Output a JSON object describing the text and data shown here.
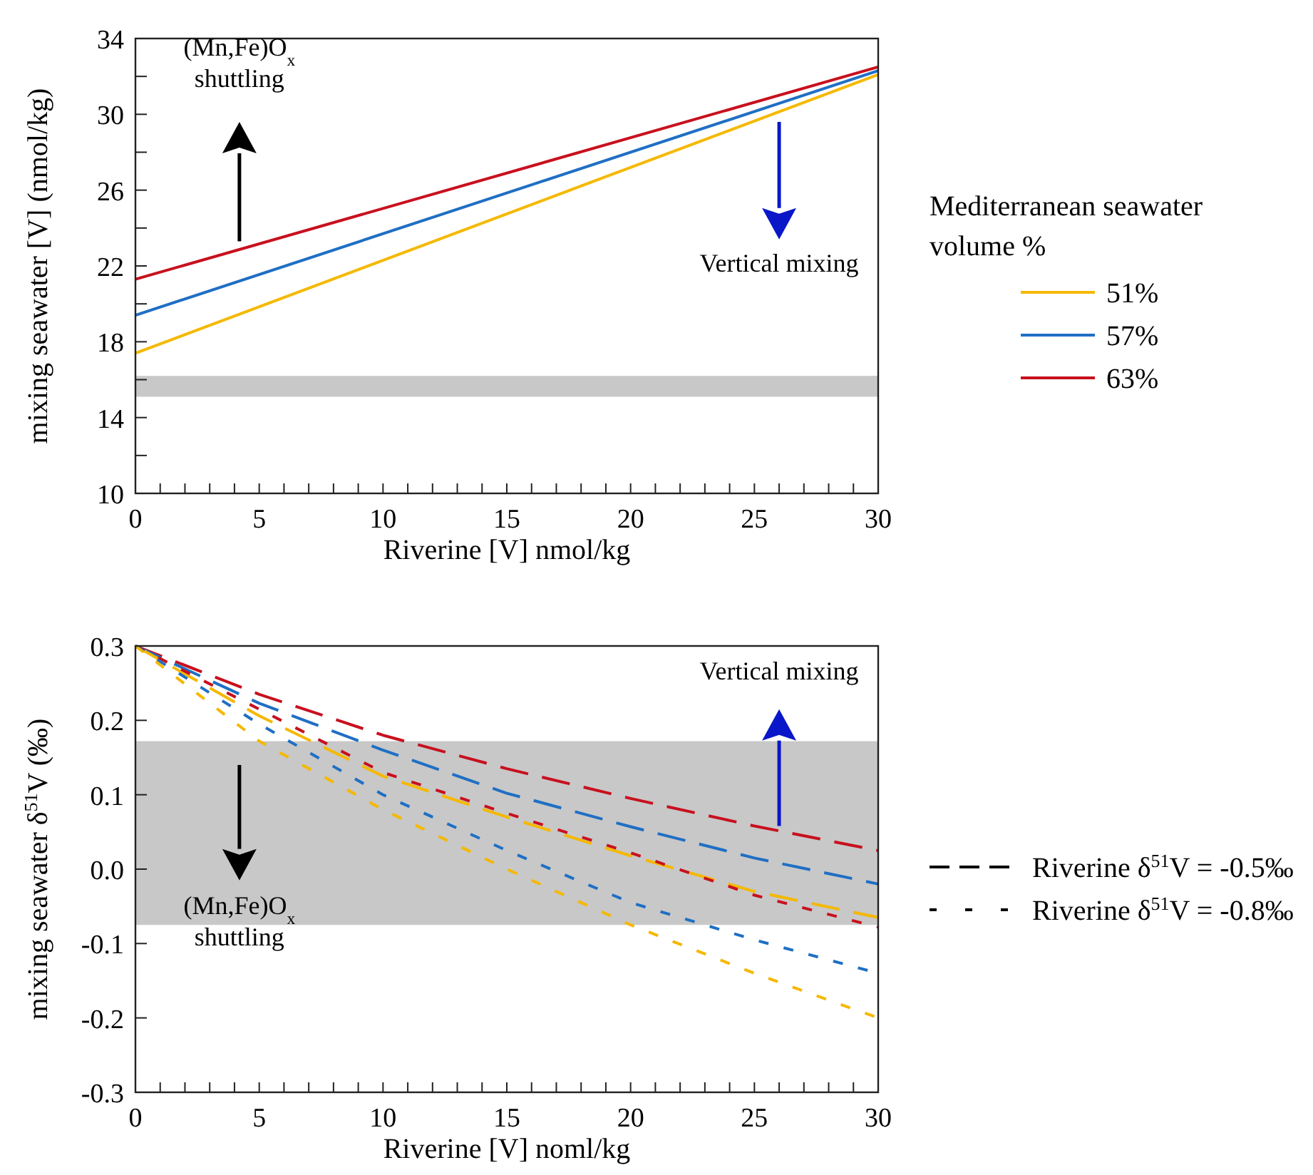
{
  "chart_data": [
    {
      "type": "line",
      "xlabel": "Riverine [V] nmol/kg",
      "ylabel": "mixing seawater [V] (nmol/kg)",
      "legend_title": "Mediterranean seawater volume %",
      "legend": "right",
      "line_style": "solid",
      "xlim": [
        0,
        30
      ],
      "ylim": [
        10,
        34
      ],
      "xticks": [
        0,
        {
          "value": 1,
          "label": null
        },
        {
          "value": 2,
          "label": null
        },
        {
          "value": 3,
          "label": null
        },
        {
          "value": 4,
          "label": null
        },
        5,
        {
          "value": 6,
          "label": null
        },
        {
          "value": 7,
          "label": null
        },
        {
          "value": 8,
          "label": null
        },
        {
          "value": 9,
          "label": null
        },
        10,
        {
          "value": 11,
          "label": null
        },
        {
          "value": 12,
          "label": null
        },
        {
          "value": 13,
          "label": null
        },
        {
          "value": 14,
          "label": null
        },
        15,
        {
          "value": 16,
          "label": null
        },
        {
          "value": 17,
          "label": null
        },
        {
          "value": 18,
          "label": null
        },
        {
          "value": 19,
          "label": null
        },
        20,
        {
          "value": 21,
          "label": null
        },
        {
          "value": 22,
          "label": null
        },
        {
          "value": 23,
          "label": null
        },
        {
          "value": 24,
          "label": null
        },
        25,
        {
          "value": 26,
          "label": null
        },
        {
          "value": 27,
          "label": null
        },
        {
          "value": 28,
          "label": null
        },
        {
          "value": 29,
          "label": null
        },
        30
      ],
      "yticks": [
        10,
        {
          "value": 12,
          "label": null
        },
        14,
        {
          "value": 16,
          "label": null
        },
        18,
        {
          "value": 20,
          "label": null
        },
        22,
        {
          "value": 24,
          "label": null
        },
        26,
        {
          "value": 28,
          "label": null
        },
        30,
        {
          "value": 32,
          "label": null
        },
        34
      ],
      "x": [
        0,
        30
      ],
      "series": [
        {
          "name": "51%",
          "color": "#f5b800",
          "values": [
            17.4,
            32.1
          ]
        },
        {
          "name": "57%",
          "color": "#1f6fc4",
          "values": [
            19.4,
            32.3
          ]
        },
        {
          "name": "63%",
          "color": "#c8101e",
          "values": [
            21.3,
            32.5
          ]
        }
      ],
      "bands": [
        {
          "axis": "y",
          "from": 15.1,
          "to": 16.2,
          "color": "#c8c8c8"
        }
      ],
      "annotations": [
        "(Mn,Fe)O$_{x}$ shuttling",
        "Vertical mixing"
      ]
    },
    {
      "type": "line",
      "xlabel": "Riverine [V] noml/kg",
      "ylabel": "mixing seawater δ$^{51}$V (‰)",
      "legend": "right",
      "xlim": [
        0,
        30
      ],
      "ylim": [
        -0.3,
        0.3
      ],
      "xticks": [
        0,
        {
          "value": 1,
          "label": null
        },
        {
          "value": 2,
          "label": null
        },
        {
          "value": 3,
          "label": null
        },
        {
          "value": 4,
          "label": null
        },
        5,
        {
          "value": 6,
          "label": null
        },
        {
          "value": 7,
          "label": null
        },
        {
          "value": 8,
          "label": null
        },
        {
          "value": 9,
          "label": null
        },
        10,
        {
          "value": 11,
          "label": null
        },
        {
          "value": 12,
          "label": null
        },
        {
          "value": 13,
          "label": null
        },
        {
          "value": 14,
          "label": null
        },
        15,
        {
          "value": 16,
          "label": null
        },
        {
          "value": 17,
          "label": null
        },
        {
          "value": 18,
          "label": null
        },
        {
          "value": 19,
          "label": null
        },
        20,
        {
          "value": 21,
          "label": null
        },
        {
          "value": 22,
          "label": null
        },
        {
          "value": 23,
          "label": null
        },
        {
          "value": 24,
          "label": null
        },
        25,
        {
          "value": 26,
          "label": null
        },
        {
          "value": 27,
          "label": null
        },
        {
          "value": 28,
          "label": null
        },
        {
          "value": 29,
          "label": null
        },
        30
      ],
      "yticks": [
        -0.3,
        -0.2,
        -0.1,
        {
          "value": 0,
          "label": "0.0"
        },
        0.1,
        0.2,
        0.3
      ],
      "x": [
        0,
        5,
        10,
        15,
        20,
        25,
        30
      ],
      "series": [
        {
          "name": "Riverine δ$^{51}$V = -0.5‰",
          "color": "#c8101e",
          "line_style": "dashed",
          "values": [
            0.3,
            0.235,
            0.18,
            0.135,
            0.095,
            0.058,
            0.025
          ]
        },
        {
          "color": "#1f6fc4",
          "line_style": "dashed",
          "values": [
            0.3,
            0.223,
            0.16,
            0.102,
            0.057,
            0.015,
            -0.02
          ]
        },
        {
          "color": "#f5b800",
          "line_style": "dashed",
          "values": [
            0.3,
            0.206,
            0.125,
            0.07,
            0.018,
            -0.03,
            -0.065
          ]
        },
        {
          "name": "Riverine δ$^{51}$V = -0.8‰",
          "color": "#c8101e",
          "line_style": "dotted",
          "values": [
            0.3,
            0.215,
            0.13,
            0.075,
            0.022,
            -0.035,
            -0.078
          ]
        },
        {
          "color": "#1f6fc4",
          "line_style": "dotted",
          "values": [
            0.3,
            0.195,
            0.1,
            0.025,
            -0.045,
            -0.095,
            -0.14
          ]
        },
        {
          "color": "#f5b800",
          "line_style": "dotted",
          "values": [
            0.3,
            0.172,
            0.08,
            0.0,
            -0.075,
            -0.14,
            -0.2
          ]
        }
      ],
      "bands": [
        {
          "axis": "y",
          "from": -0.075,
          "to": 0.172,
          "color": "#c8c8c8"
        }
      ],
      "annotations": [
        "(Mn,Fe)O$_{x}$ shuttling",
        "Vertical mixing"
      ]
    }
  ]
}
